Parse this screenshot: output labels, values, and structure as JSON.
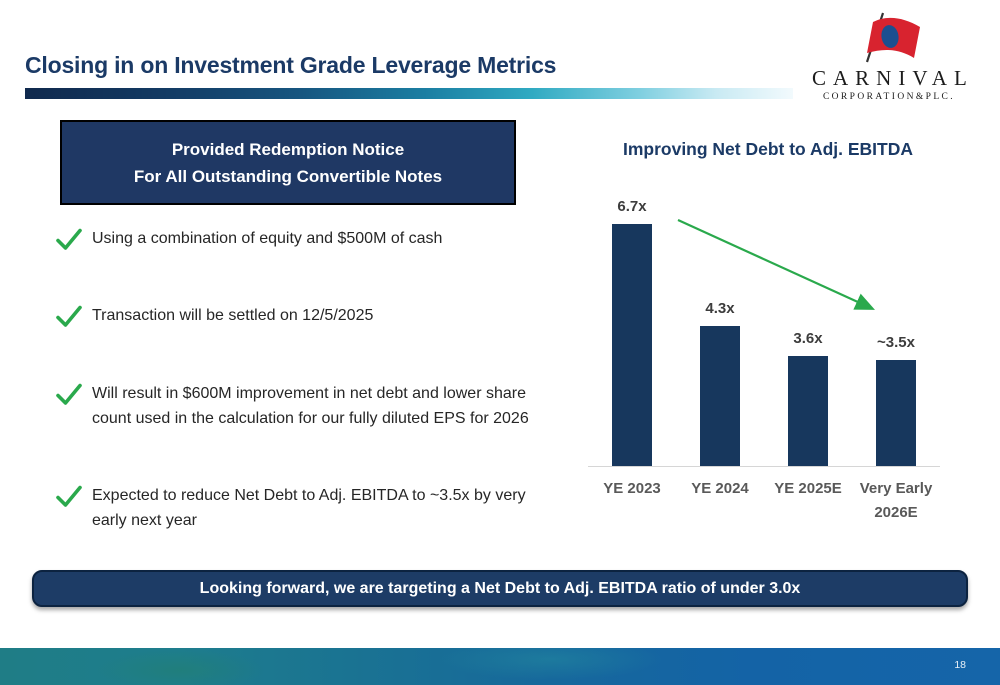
{
  "slide": {
    "title": "Closing in on Investment Grade Leverage Metrics",
    "page_number": "18"
  },
  "logo": {
    "name": "CARNIVAL",
    "subtitle": "CORPORATION&PLC."
  },
  "notice_box": {
    "line1": "Provided Redemption Notice",
    "line2": "For All Outstanding Convertible Notes"
  },
  "bullets": [
    {
      "text": "Using a combination of equity and $500M of cash"
    },
    {
      "text": "Transaction will be settled on 12/5/2025"
    },
    {
      "text": "Will result in $600M improvement in net debt and lower share count used in the calculation for our fully diluted EPS for 2026"
    },
    {
      "text": "Expected to reduce Net Debt to Adj. EBITDA to ~3.5x by very early next year"
    }
  ],
  "chart_data": {
    "type": "bar",
    "title": "Improving Net Debt to Adj. EBITDA",
    "categories": [
      "YE 2023",
      "YE 2024",
      "YE 2025E",
      "Very Early 2026E"
    ],
    "values": [
      6.7,
      4.3,
      3.6,
      3.5
    ],
    "data_labels": [
      "6.7x",
      "4.3x",
      "3.6x",
      "~3.5x"
    ],
    "ylim": [
      1.0,
      7.5
    ],
    "grid": false,
    "legend": "none",
    "bar_color": "#17375d",
    "annotation": "green downward trend arrow from first bar toward last bar",
    "xlabel": "",
    "ylabel": ""
  },
  "banner": {
    "text": "Looking forward, we are targeting a Net Debt to Adj. EBITDA ratio of under 3.0x"
  },
  "colors": {
    "navy_text": "#1b3a66",
    "navy_box": "#1f3864",
    "navy_banner": "#1d3c66",
    "bar_navy": "#17375d",
    "green_accent": "#2aa94c",
    "logo_red": "#d8232f",
    "logo_blue": "#1c4f90"
  }
}
